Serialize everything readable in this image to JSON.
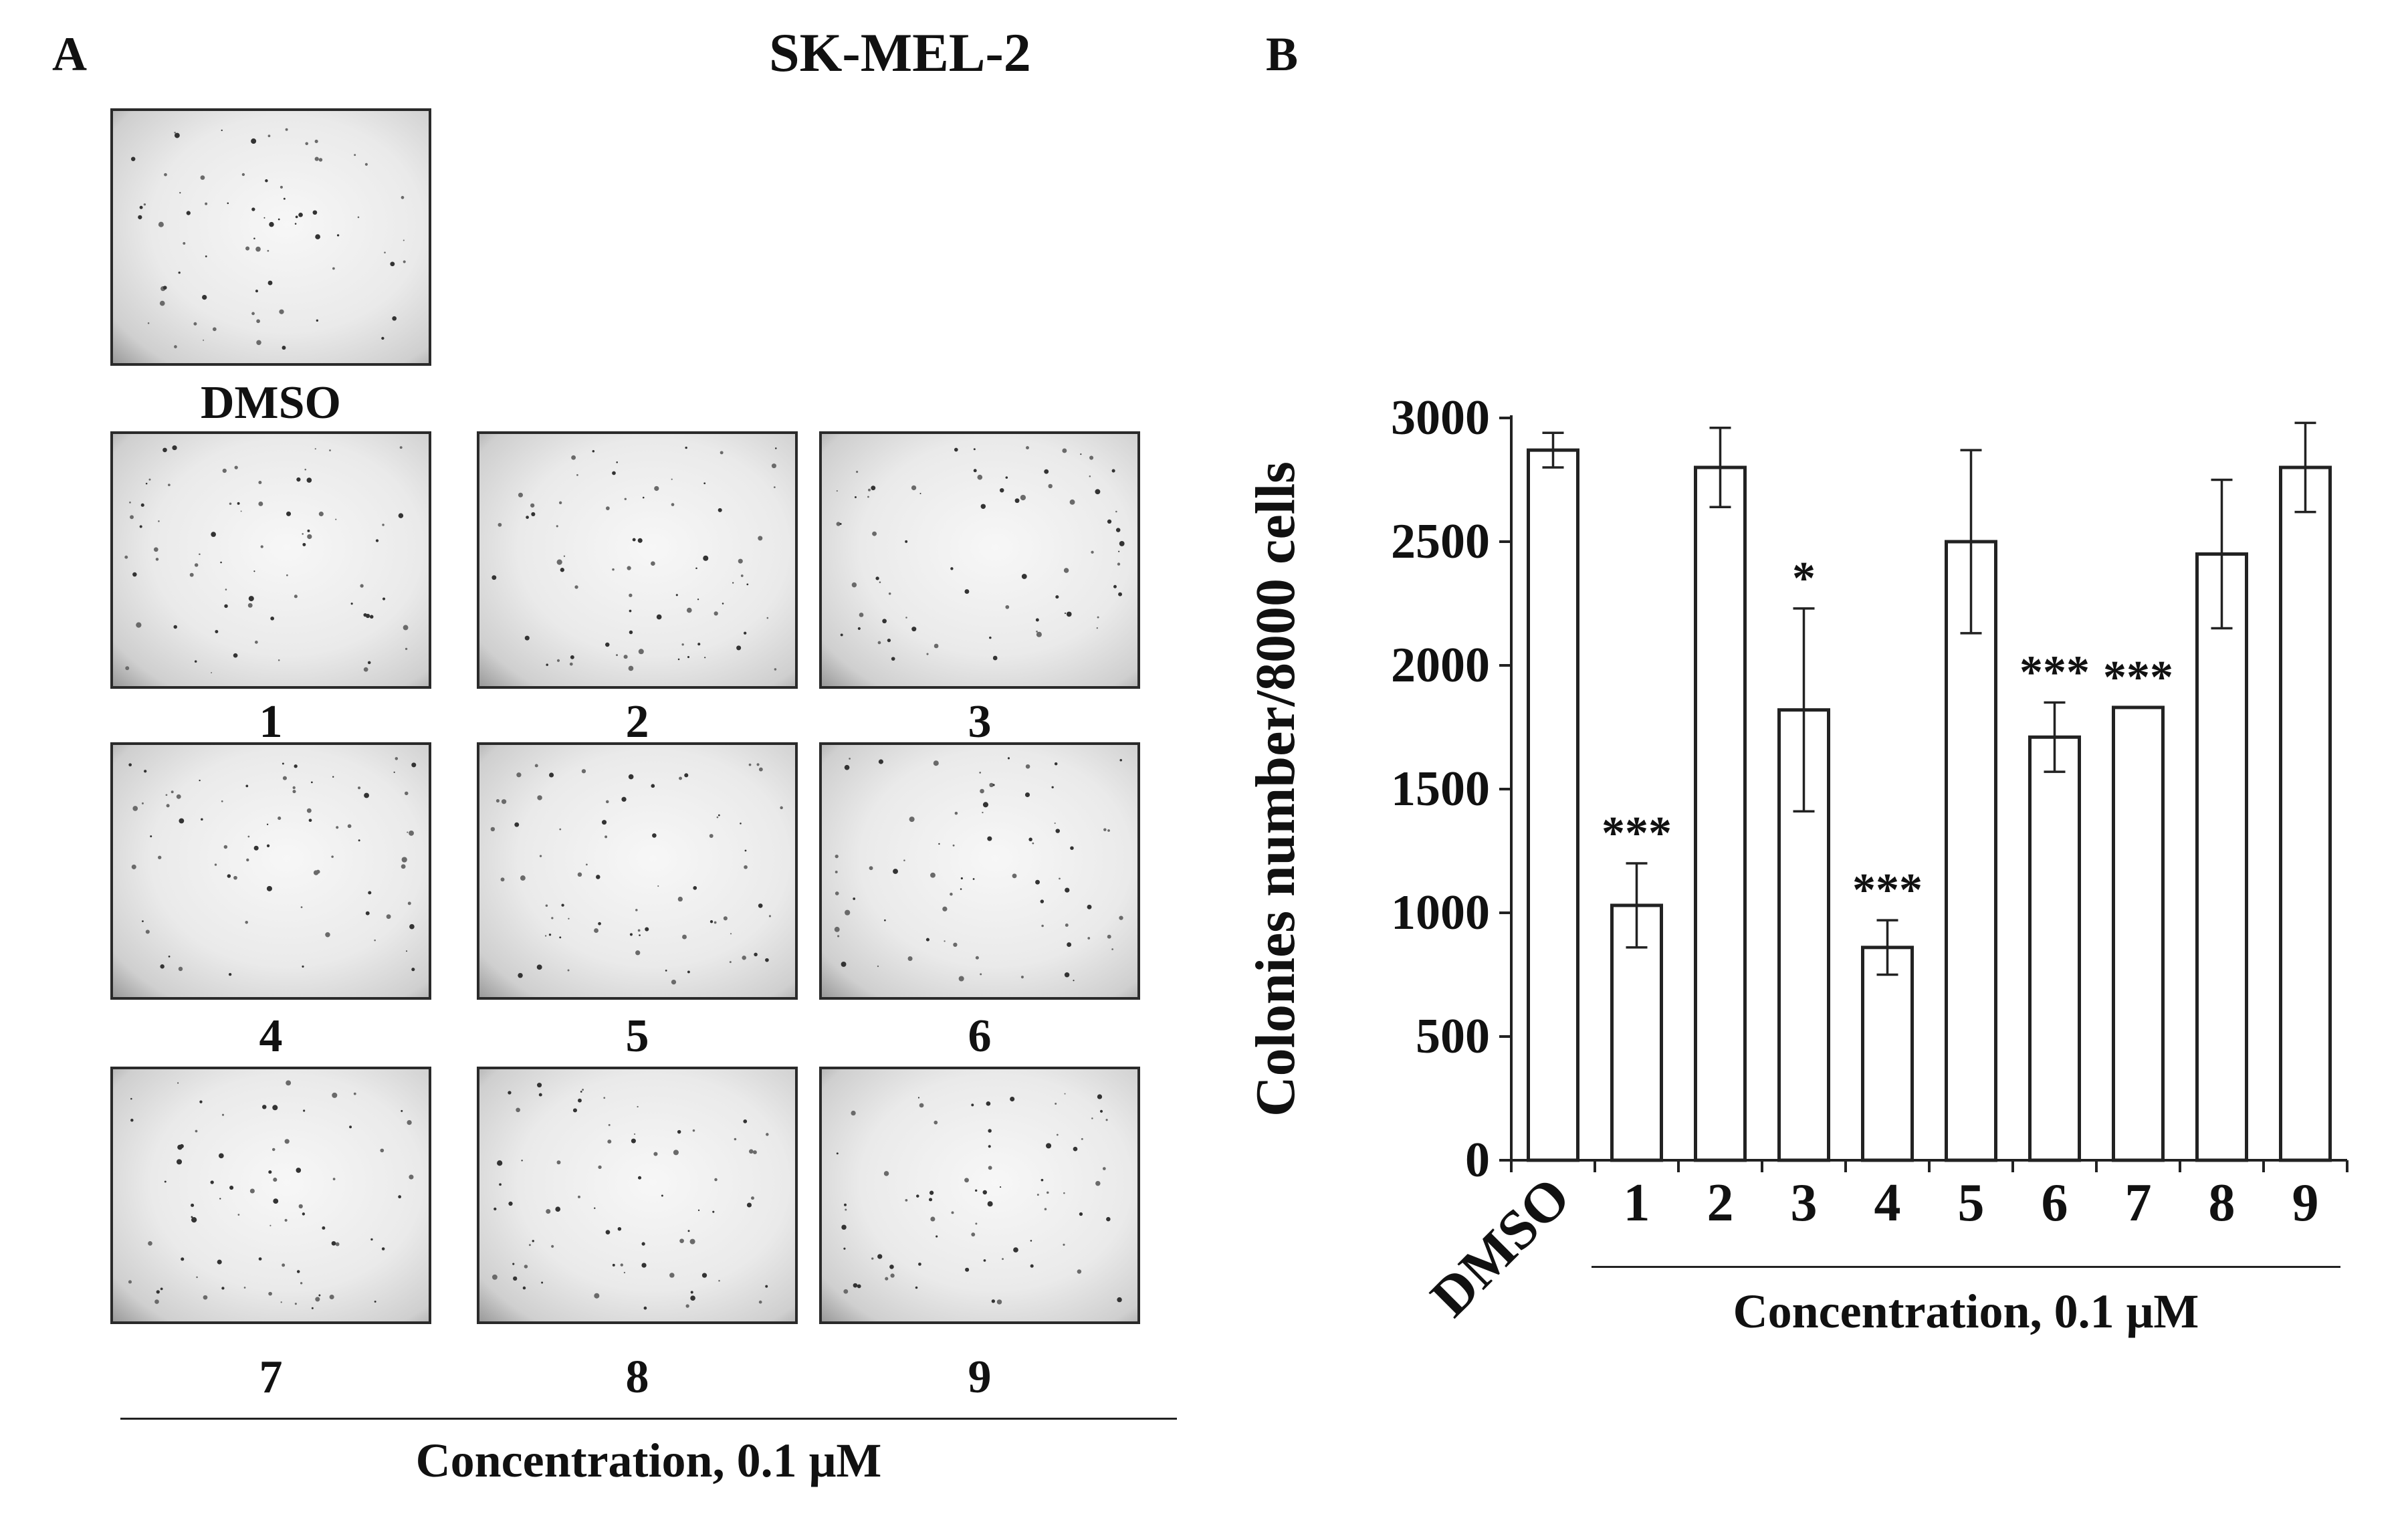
{
  "panel_a": {
    "letter": "A",
    "cell_line": "SK-MEL-2",
    "plates": [
      {
        "label": "DMSO"
      },
      {
        "label": "1"
      },
      {
        "label": "2"
      },
      {
        "label": "3"
      },
      {
        "label": "4"
      },
      {
        "label": "5"
      },
      {
        "label": "6"
      },
      {
        "label": "7"
      },
      {
        "label": "8"
      },
      {
        "label": "9"
      }
    ],
    "group_caption": "Concentration, 0.1 μM"
  },
  "panel_b": {
    "letter": "B",
    "group_caption": "Concentration, 0.1 μM"
  },
  "chart_data": {
    "type": "bar",
    "title": "",
    "xlabel": "",
    "ylabel": "Colonies number/8000 cells",
    "categories": [
      "DMSO",
      "1",
      "2",
      "3",
      "4",
      "5",
      "6",
      "7",
      "8",
      "9"
    ],
    "values": [
      2870,
      1030,
      2800,
      1820,
      860,
      2500,
      1710,
      1830,
      2450,
      2800
    ],
    "errors": [
      70,
      170,
      160,
      410,
      110,
      370,
      140,
      0,
      300,
      180
    ],
    "significance": [
      "",
      "***",
      "",
      "*",
      "***",
      "",
      "***",
      "***",
      "",
      ""
    ],
    "ylim": [
      0,
      3000
    ],
    "yticks": [
      0,
      500,
      1000,
      1500,
      2000,
      2500,
      3000
    ],
    "grid": false,
    "bar_fill": "#ffffff",
    "bar_stroke": "#222222"
  }
}
